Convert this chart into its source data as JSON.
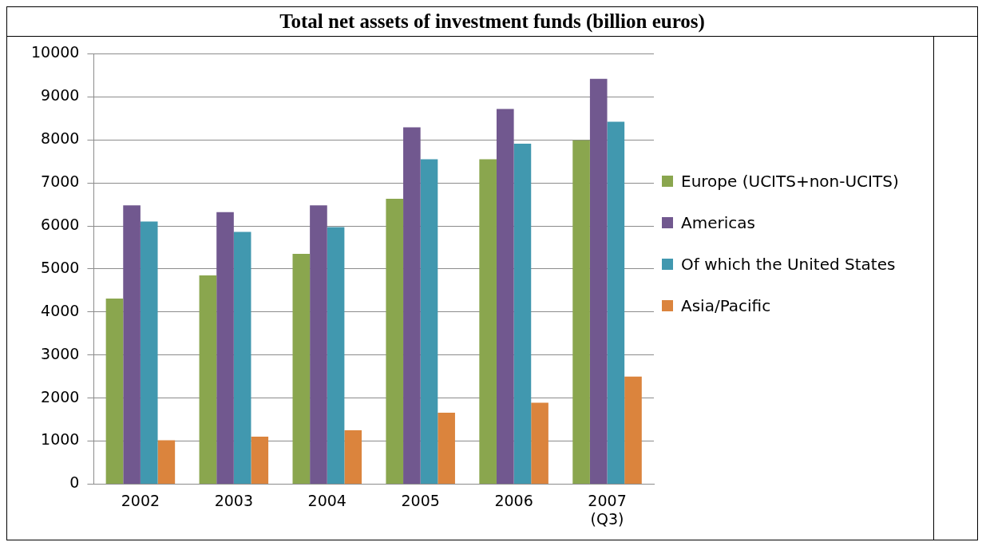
{
  "chart_data": {
    "type": "bar",
    "title": "Total net assets of investment funds (billion euros)",
    "categories": [
      "2002",
      "2003",
      "2004",
      "2005",
      "2006",
      "2007 (Q3)"
    ],
    "series": [
      {
        "name": "Europe (UCITS+non-UCITS)",
        "color": "#8aa64e",
        "values": [
          4310,
          4850,
          5350,
          6630,
          7550,
          7990
        ]
      },
      {
        "name": "Americas",
        "color": "#71588f",
        "values": [
          6480,
          6320,
          6480,
          8290,
          8720,
          9420
        ]
      },
      {
        "name": "Of which the United States",
        "color": "#4198af",
        "values": [
          6100,
          5860,
          5970,
          7550,
          7910,
          8420
        ]
      },
      {
        "name": "Asia/Pacific",
        "color": "#db843d",
        "values": [
          1020,
          1100,
          1250,
          1660,
          1890,
          2500
        ]
      }
    ],
    "ylim": [
      0,
      10000
    ],
    "yticks": [
      0,
      1000,
      2000,
      3000,
      4000,
      5000,
      6000,
      7000,
      8000,
      9000,
      10000
    ],
    "grid": "y",
    "legend": "right"
  }
}
